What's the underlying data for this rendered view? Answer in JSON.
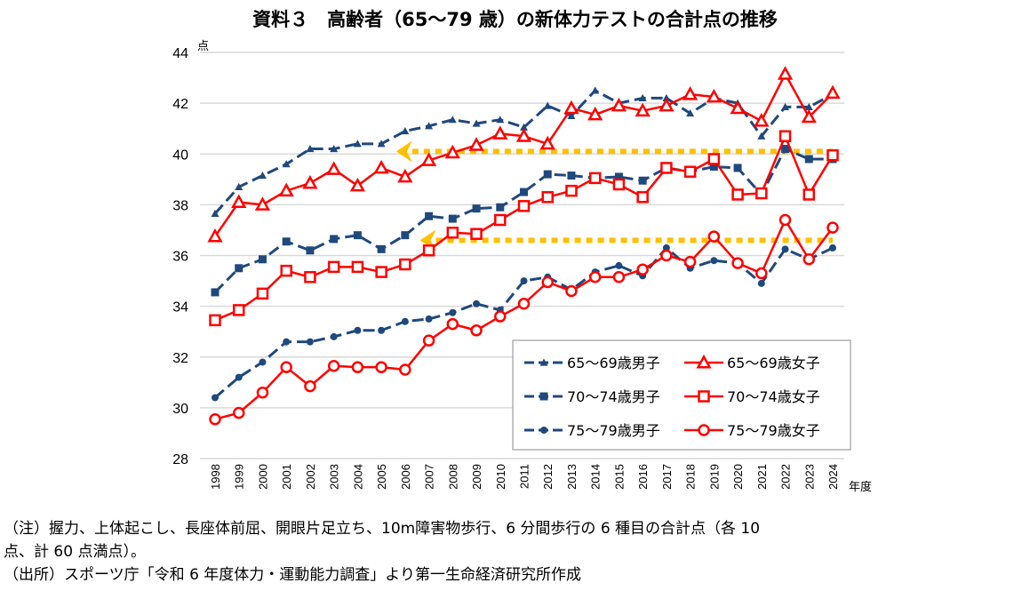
{
  "title": "資料３　高齢者（65～79 歳）の新体力テストの合計点の推移",
  "notes": [
    "（注）握力、上体起こし、長座体前屈、開眼片足立ち、10m障害物歩行、6 分間歩行の 6 種目の合計点（各 10",
    "点、計 60 点満点）。",
    "（出所）スポーツ庁「令和 6 年度体力・運動能力調査」より第一生命経済研究所作成"
  ],
  "chart_data": {
    "type": "line",
    "title": "資料３　高齢者（65～79 歳）の新体力テストの合計点の推移",
    "ylabel": "点",
    "xlabel": "年度",
    "ylim": [
      28,
      44
    ],
    "yticks": [
      28,
      30,
      32,
      34,
      36,
      38,
      40,
      42,
      44
    ],
    "grid": true,
    "legend_position": "bottom-right",
    "x": [
      1998,
      1999,
      2000,
      2001,
      2002,
      2003,
      2004,
      2005,
      2006,
      2007,
      2008,
      2009,
      2010,
      2011,
      2012,
      2013,
      2014,
      2015,
      2016,
      2017,
      2018,
      2019,
      2020,
      2021,
      2022,
      2023,
      2024
    ],
    "colors": {
      "male": "#1f497d",
      "female": "#ff0000",
      "reference": "#ffc000"
    },
    "series": [
      {
        "name": "65～69歳男子",
        "group": "male",
        "marker": "triangle-filled",
        "values": [
          37.65,
          38.7,
          39.15,
          39.6,
          40.2,
          40.2,
          40.4,
          40.4,
          40.9,
          41.1,
          41.35,
          41.2,
          41.35,
          41.05,
          41.9,
          41.5,
          42.5,
          42.0,
          42.2,
          42.2,
          41.6,
          42.2,
          42.0,
          40.7,
          41.85,
          41.85,
          42.35
        ]
      },
      {
        "name": "65～69歳女子",
        "group": "female",
        "marker": "triangle-open",
        "values": [
          36.75,
          38.1,
          38.0,
          38.55,
          38.85,
          39.4,
          38.75,
          39.45,
          39.1,
          39.75,
          40.05,
          40.35,
          40.8,
          40.7,
          40.4,
          41.8,
          41.55,
          41.9,
          41.7,
          41.9,
          42.35,
          42.25,
          41.8,
          41.3,
          43.15,
          41.45,
          42.4
        ]
      },
      {
        "name": "70～74歳男子",
        "group": "male",
        "marker": "square-filled",
        "values": [
          34.55,
          35.5,
          35.85,
          36.55,
          36.2,
          36.65,
          36.8,
          36.25,
          36.8,
          37.55,
          37.45,
          37.85,
          37.9,
          38.5,
          39.2,
          39.15,
          39.05,
          39.1,
          38.95,
          39.45,
          39.3,
          39.5,
          39.45,
          38.4,
          40.2,
          39.8,
          39.8
        ]
      },
      {
        "name": "70～74歳女子",
        "group": "female",
        "marker": "square-open",
        "values": [
          33.45,
          33.85,
          34.5,
          35.4,
          35.15,
          35.55,
          35.55,
          35.35,
          35.65,
          36.2,
          36.9,
          36.85,
          37.4,
          37.95,
          38.3,
          38.55,
          39.05,
          38.8,
          38.3,
          39.45,
          39.3,
          39.8,
          38.4,
          38.45,
          40.7,
          38.4,
          39.95
        ]
      },
      {
        "name": "75～79歳男子",
        "group": "male",
        "marker": "circle-filled",
        "values": [
          30.4,
          31.2,
          31.8,
          32.6,
          32.6,
          32.8,
          33.05,
          33.05,
          33.4,
          33.5,
          33.75,
          34.1,
          33.85,
          35.0,
          35.15,
          34.65,
          35.35,
          35.6,
          35.2,
          36.3,
          35.5,
          35.8,
          35.7,
          34.9,
          36.25,
          35.85,
          36.3
        ]
      },
      {
        "name": "75～79歳女子",
        "group": "female",
        "marker": "circle-open",
        "values": [
          29.55,
          29.8,
          30.6,
          31.6,
          30.85,
          31.65,
          31.6,
          31.6,
          31.5,
          32.65,
          33.3,
          33.05,
          33.6,
          34.1,
          34.95,
          34.6,
          35.15,
          35.15,
          35.45,
          36.0,
          35.75,
          36.75,
          35.7,
          35.3,
          37.4,
          35.85,
          37.1
        ]
      }
    ],
    "annotations": [
      {
        "type": "dotted-arrow",
        "value": 40.1,
        "from": 2024,
        "to": 2006
      },
      {
        "type": "dotted-arrow",
        "value": 36.6,
        "from": 2024,
        "to": 2007
      }
    ]
  }
}
